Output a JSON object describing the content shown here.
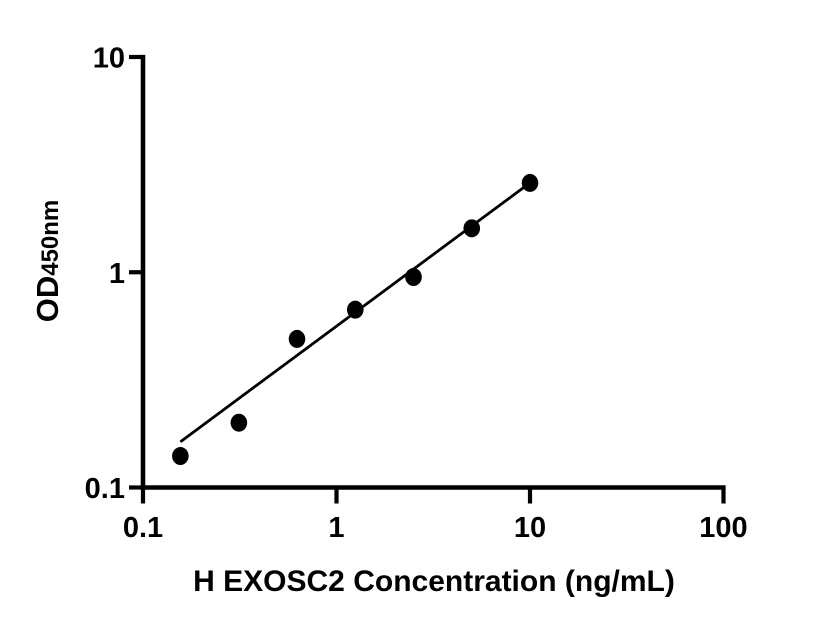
{
  "figure": {
    "background": "#ffffff"
  },
  "chart_data": {
    "type": "scatter",
    "title": "",
    "xlabel": "H EXOSC2 Concentration (ng/mL)",
    "ylabel": "OD450nm",
    "ylabel_main": "OD",
    "ylabel_sub": "450nm",
    "x_scale": "log",
    "y_scale": "log",
    "xlim": [
      0.1,
      100
    ],
    "ylim": [
      0.1,
      10
    ],
    "grid": false,
    "legend": false,
    "x_ticks": [
      {
        "value": 0.1,
        "label": "0.1"
      },
      {
        "value": 1,
        "label": "1"
      },
      {
        "value": 10,
        "label": "10"
      },
      {
        "value": 100,
        "label": "100"
      }
    ],
    "y_ticks": [
      {
        "value": 0.1,
        "label": "0.1"
      },
      {
        "value": 1,
        "label": "1"
      },
      {
        "value": 10,
        "label": "10"
      }
    ],
    "series": [
      {
        "name": "standard-curve-points",
        "marker": "filled-circle",
        "color": "#000000",
        "points": [
          {
            "x": 0.156,
            "y": 0.14
          },
          {
            "x": 0.313,
            "y": 0.2
          },
          {
            "x": 0.625,
            "y": 0.49
          },
          {
            "x": 1.25,
            "y": 0.67
          },
          {
            "x": 2.5,
            "y": 0.95
          },
          {
            "x": 5,
            "y": 1.6
          },
          {
            "x": 10,
            "y": 2.6
          }
        ]
      }
    ],
    "trendline": {
      "x1": 0.156,
      "y1": 0.163,
      "x2": 10.1,
      "y2": 2.62,
      "color": "#000000"
    },
    "colors": {
      "axis": "#000000",
      "text": "#000000",
      "marker": "#000000",
      "background": "#ffffff"
    }
  }
}
